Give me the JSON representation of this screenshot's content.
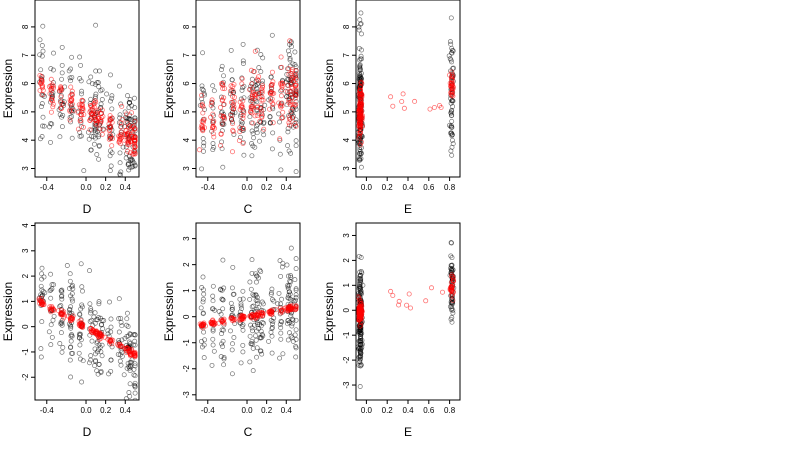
{
  "chart_data": [
    {
      "type": "scatter",
      "panel": "top-left",
      "xlabel": "D",
      "ylabel": "Expression",
      "xticks": [
        -0.4,
        0.0,
        0.2,
        0.4
      ],
      "xtick_labels": [
        "-0.4",
        "0.0",
        "0.2",
        "0.4"
      ],
      "yticks": [
        3,
        4,
        5,
        6,
        7,
        8
      ],
      "ytick_labels": [
        "3",
        "4",
        "5",
        "6",
        "7",
        "8"
      ],
      "xlim": [
        -0.52,
        0.54
      ],
      "ylim": [
        2.7,
        8.95
      ],
      "series": [
        {
          "style": "black-open-circles",
          "trend": "decreasing",
          "x_range": [
            -0.5,
            0.5
          ],
          "y_at_xmin": 6.2,
          "y_at_xmax": 3.9,
          "spread": 0.85,
          "count": 260
        },
        {
          "style": "red-open-circles",
          "trend": "decreasing",
          "x_range": [
            -0.5,
            0.5
          ],
          "y_at_xmin": 6.0,
          "y_at_xmax": 4.0,
          "spread": 0.3,
          "count": 220
        }
      ]
    },
    {
      "type": "scatter",
      "panel": "top-middle",
      "xlabel": "C",
      "ylabel": "Expression",
      "xticks": [
        -0.4,
        0.0,
        0.2,
        0.4
      ],
      "xtick_labels": [
        "-0.4",
        "0.0",
        "0.2",
        "0.4"
      ],
      "yticks": [
        3,
        4,
        5,
        6,
        7,
        8
      ],
      "ytick_labels": [
        "3",
        "4",
        "5",
        "6",
        "7",
        "8"
      ],
      "xlim": [
        -0.52,
        0.54
      ],
      "ylim": [
        2.7,
        8.95
      ],
      "series": [
        {
          "style": "black-open-circles",
          "trend": "increasing",
          "x_range": [
            -0.5,
            0.5
          ],
          "y_at_xmin": 4.8,
          "y_at_xmax": 5.7,
          "spread": 0.95,
          "count": 260
        },
        {
          "style": "red-open-circles",
          "trend": "increasing",
          "x_range": [
            -0.5,
            0.5
          ],
          "y_at_xmin": 4.6,
          "y_at_xmax": 5.8,
          "spread": 0.55,
          "count": 220
        }
      ]
    },
    {
      "type": "scatter",
      "panel": "top-right",
      "xlabel": "E",
      "ylabel": "Expression",
      "xticks": [
        0.0,
        0.2,
        0.4,
        0.6,
        0.8
      ],
      "xtick_labels": [
        "0.0",
        "0.2",
        "0.4",
        "0.6",
        "0.8"
      ],
      "yticks": [
        3,
        4,
        5,
        6,
        7,
        8
      ],
      "ytick_labels": [
        "3",
        "4",
        "5",
        "6",
        "7",
        "8"
      ],
      "xlim": [
        -0.1,
        0.9
      ],
      "ylim": [
        2.7,
        8.95
      ],
      "series": [
        {
          "style": "black-open-circles",
          "clusters": [
            {
              "x": -0.06,
              "y_center": 5.0,
              "spread": 1.2,
              "count": 180
            },
            {
              "x": 0.82,
              "y_center": 5.7,
              "spread": 1.0,
              "count": 60
            }
          ],
          "count": 240
        },
        {
          "style": "red-open-circles",
          "clusters": [
            {
              "x": -0.06,
              "y_center": 5.0,
              "spread": 0.5,
              "count": 120
            },
            {
              "x": 0.82,
              "y_center": 5.9,
              "spread": 0.25,
              "count": 30
            },
            {
              "x_range": [
                0.2,
                0.75
              ],
              "y_center": 5.3,
              "spread": 0.3,
              "count": 10
            }
          ],
          "count": 160
        }
      ]
    },
    {
      "type": "scatter",
      "panel": "bottom-left",
      "xlabel": "D",
      "ylabel": "Expression",
      "xticks": [
        -0.4,
        0.0,
        0.2,
        0.4
      ],
      "xtick_labels": [
        "-0.4",
        "0.0",
        "0.2",
        "0.4"
      ],
      "yticks": [
        -2,
        -1,
        0,
        1,
        2,
        3,
        4
      ],
      "ytick_labels": [
        "-2",
        "-1",
        "0",
        "1",
        "2",
        "3",
        "4"
      ],
      "xlim": [
        -0.52,
        0.54
      ],
      "ylim": [
        -2.9,
        4.1
      ],
      "series": [
        {
          "style": "black-open-circles",
          "trend": "decreasing",
          "x_range": [
            -0.5,
            0.5
          ],
          "y_at_xmin": 1.3,
          "y_at_xmax": -1.2,
          "spread": 0.9,
          "count": 260
        },
        {
          "style": "red-open-circles",
          "trend": "decreasing",
          "x_range": [
            -0.5,
            0.5
          ],
          "y_at_xmin": 1.05,
          "y_at_xmax": -1.1,
          "spread": 0.06,
          "count": 180
        }
      ]
    },
    {
      "type": "scatter",
      "panel": "bottom-middle",
      "xlabel": "C",
      "ylabel": "Expression",
      "xticks": [
        -0.4,
        0.0,
        0.2,
        0.4
      ],
      "xtick_labels": [
        "-0.4",
        "0.0",
        "0.2",
        "0.4"
      ],
      "yticks": [
        -3,
        -2,
        -1,
        0,
        1,
        2,
        3
      ],
      "ytick_labels": [
        "-3",
        "-2",
        "-1",
        "0",
        "1",
        "2",
        "3"
      ],
      "xlim": [
        -0.52,
        0.54
      ],
      "ylim": [
        -3.2,
        3.6
      ],
      "series": [
        {
          "style": "black-open-circles",
          "trend": "increasing",
          "x_range": [
            -0.5,
            0.5
          ],
          "y_at_xmin": -0.4,
          "y_at_xmax": 0.4,
          "spread": 0.95,
          "count": 260
        },
        {
          "style": "red-open-circles",
          "trend": "increasing",
          "x_range": [
            -0.5,
            0.5
          ],
          "y_at_xmin": -0.35,
          "y_at_xmax": 0.35,
          "spread": 0.05,
          "count": 180
        }
      ]
    },
    {
      "type": "scatter",
      "panel": "bottom-right",
      "xlabel": "E",
      "ylabel": "Expression",
      "xticks": [
        0.0,
        0.2,
        0.4,
        0.6,
        0.8
      ],
      "xtick_labels": [
        "0.0",
        "0.2",
        "0.4",
        "0.6",
        "0.8"
      ],
      "yticks": [
        -3,
        -2,
        -1,
        0,
        1,
        2,
        3
      ],
      "ytick_labels": [
        "-3",
        "-2",
        "-1",
        "0",
        "1",
        "2",
        "3"
      ],
      "xlim": [
        -0.1,
        0.9
      ],
      "ylim": [
        -3.6,
        3.5
      ],
      "series": [
        {
          "style": "black-open-circles",
          "clusters": [
            {
              "x": -0.06,
              "y_center": -0.2,
              "spread": 1.0,
              "count": 180
            },
            {
              "x": 0.82,
              "y_center": 0.9,
              "spread": 0.8,
              "count": 60
            }
          ],
          "count": 240
        },
        {
          "style": "red-open-circles",
          "clusters": [
            {
              "x": -0.06,
              "y_center": -0.1,
              "spread": 0.2,
              "count": 120
            },
            {
              "x": 0.82,
              "y_center": 0.95,
              "spread": 0.2,
              "count": 30
            },
            {
              "x_range": [
                0.2,
                0.75
              ],
              "y_center": 0.5,
              "spread": 0.3,
              "count": 10
            }
          ],
          "count": 160
        }
      ]
    }
  ]
}
